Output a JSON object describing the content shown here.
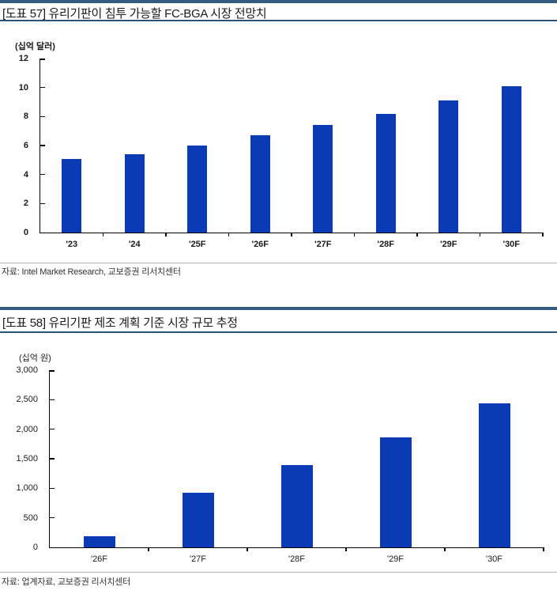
{
  "colors": {
    "bar": "#0a3ab4",
    "header_bar": "#335a80",
    "header_rule": "#2e5078",
    "axis": "#000000",
    "separator": "#b3b3b3",
    "title_text": "#1a1a1a",
    "source_text": "#333333"
  },
  "figures": [
    {
      "title": "[도표 57] 유리기판이 침투 가능할 FC-BGA 시장 전망치",
      "unit": "(십억 달러)",
      "source": "자료: Intel Market Research,  교보증권 리서치센터"
    },
    {
      "title": "[도표 58] 유리기판 제조 계획 기준 시장 규모 추정",
      "unit": "(십억 원)",
      "source": "자료: 업계자료,  교보증권 리서치센터"
    }
  ],
  "chart_data": [
    {
      "type": "bar",
      "title": "[도표 57] 유리기판이 침투 가능할 FC-BGA 시장 전망치",
      "ylabel": "(십억 달러)",
      "xlabel": "",
      "categories": [
        "'23",
        "'24",
        "'25F",
        "'26F",
        "'27F",
        "'28F",
        "'29F",
        "'30F"
      ],
      "values": [
        5.1,
        5.4,
        6.0,
        6.7,
        7.4,
        8.2,
        9.1,
        10.1
      ],
      "ylim": [
        0,
        12
      ],
      "yticks": [
        0,
        2,
        4,
        6,
        8,
        10,
        12
      ],
      "ytick_labels": [
        "0",
        "2",
        "4",
        "6",
        "8",
        "10",
        "12"
      ],
      "bar_color": "#0a3ab4",
      "grid": false,
      "legend": false
    },
    {
      "type": "bar",
      "title": "[도표 58] 유리기판 제조 계획 기준 시장 규모 추정",
      "ylabel": "(십억 원)",
      "xlabel": "",
      "categories": [
        "'26F",
        "'27F",
        "'28F",
        "'29F",
        "'30F"
      ],
      "values": [
        190,
        930,
        1390,
        1860,
        2440
      ],
      "ylim": [
        0,
        3000
      ],
      "yticks": [
        0,
        500,
        1000,
        1500,
        2000,
        2500,
        3000
      ],
      "ytick_labels": [
        "0",
        "500",
        "1,000",
        "1,500",
        "2,000",
        "2,500",
        "3,000"
      ],
      "bar_color": "#0a3ab4",
      "grid": false,
      "legend": false
    }
  ]
}
